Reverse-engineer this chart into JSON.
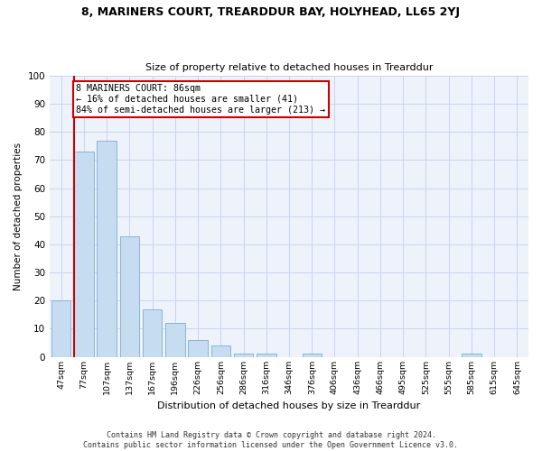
{
  "title": "8, MARINERS COURT, TREARDDUR BAY, HOLYHEAD, LL65 2YJ",
  "subtitle": "Size of property relative to detached houses in Trearddur",
  "xlabel": "Distribution of detached houses by size in Trearddur",
  "ylabel": "Number of detached properties",
  "bin_labels": [
    "47sqm",
    "77sqm",
    "107sqm",
    "137sqm",
    "167sqm",
    "196sqm",
    "226sqm",
    "256sqm",
    "286sqm",
    "316sqm",
    "346sqm",
    "376sqm",
    "406sqm",
    "436sqm",
    "466sqm",
    "495sqm",
    "525sqm",
    "555sqm",
    "585sqm",
    "615sqm",
    "645sqm"
  ],
  "bar_values": [
    20,
    73,
    77,
    43,
    17,
    12,
    6,
    4,
    1,
    1,
    0,
    1,
    0,
    0,
    0,
    0,
    0,
    0,
    1,
    0,
    0
  ],
  "bar_color": "#c6dcf0",
  "bar_edgecolor": "#7aafd4",
  "vline_bin_index": 1,
  "vline_color": "#cc0000",
  "annotation_text": "8 MARINERS COURT: 86sqm\n← 16% of detached houses are smaller (41)\n84% of semi-detached houses are larger (213) →",
  "annotation_box_edgecolor": "#cc0000",
  "ylim": [
    0,
    100
  ],
  "yticks": [
    0,
    10,
    20,
    30,
    40,
    50,
    60,
    70,
    80,
    90,
    100
  ],
  "footer_line1": "Contains HM Land Registry data © Crown copyright and database right 2024.",
  "footer_line2": "Contains public sector information licensed under the Open Government Licence v3.0.",
  "background_color": "#eef2fb",
  "grid_color": "#c8d4ee"
}
